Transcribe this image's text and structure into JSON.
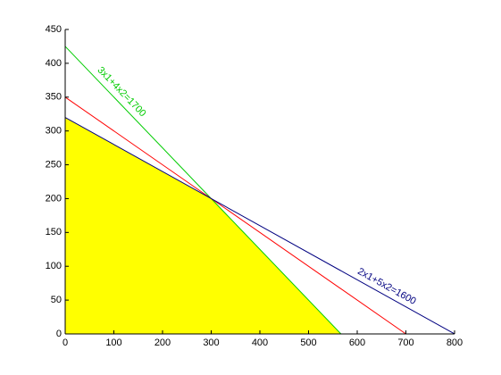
{
  "chart_data": {
    "type": "line",
    "xlim": [
      0,
      800
    ],
    "ylim": [
      0,
      450
    ],
    "xticks": [
      0,
      100,
      200,
      300,
      400,
      500,
      600,
      700,
      800
    ],
    "yticks": [
      0,
      50,
      100,
      150,
      200,
      250,
      300,
      350,
      400,
      450
    ],
    "series": [
      {
        "color": "#ffff00",
        "fill": true,
        "x": [
          0,
          0,
          300,
          566.67
        ],
        "values": [
          0,
          320,
          200,
          0
        ]
      },
      {
        "color": "#00cc00",
        "x": [
          0,
          566.67
        ],
        "values": [
          425,
          0
        ]
      },
      {
        "color": "#ff0000",
        "x": [
          0,
          700
        ],
        "values": [
          350,
          0
        ]
      },
      {
        "color": "#000080",
        "x": [
          0,
          800
        ],
        "values": [
          320,
          0
        ]
      }
    ],
    "annotations": [
      {
        "text": "3x1+4x2=1700",
        "color": "#00cc00"
      },
      {
        "text": "2x1+5x2=1600",
        "color": "#000080"
      }
    ]
  }
}
